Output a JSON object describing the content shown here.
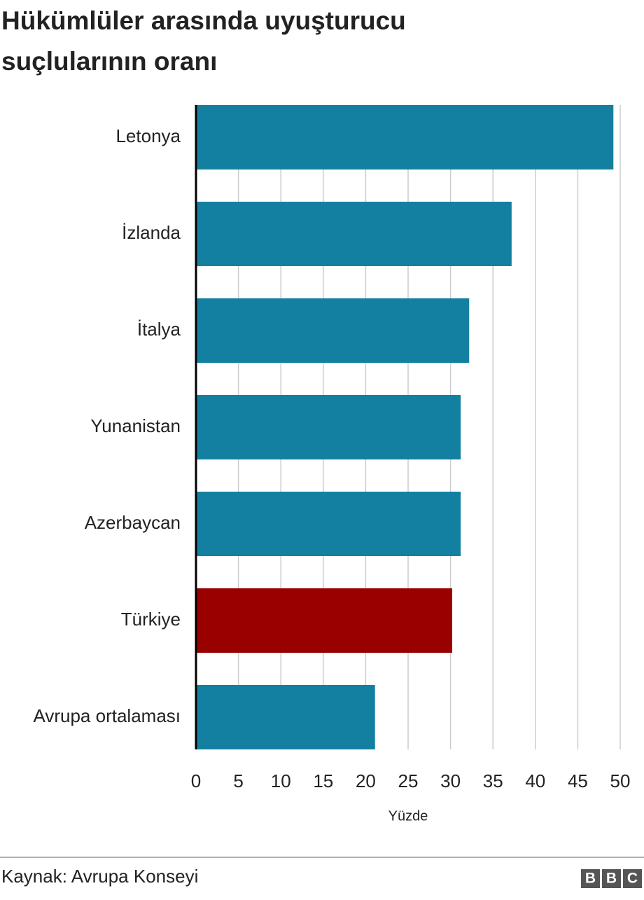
{
  "chart_data": {
    "type": "bar",
    "orientation": "horizontal",
    "title": "Hükümlüler arasında uyuşturucu suçlularının oranı",
    "categories": [
      "Letonya",
      "İzlanda",
      "İtalya",
      "Yunanistan",
      "Azerbaycan",
      "Türkiye",
      "Avrupa ortalaması"
    ],
    "values": [
      49.2,
      37.2,
      32.2,
      31.2,
      31.2,
      30.2,
      21.1
    ],
    "colors": [
      "#1380a1",
      "#1380a1",
      "#1380a1",
      "#1380a1",
      "#1380a1",
      "#990000",
      "#1380a1"
    ],
    "xlim": [
      0,
      50
    ],
    "xticks": [
      0,
      5,
      10,
      15,
      20,
      25,
      30,
      35,
      40,
      45,
      50
    ],
    "xlabel": "Yüzde",
    "grid": true,
    "source": "Kaynak: Avrupa Konseyi",
    "logo": [
      "B",
      "B",
      "C"
    ]
  }
}
